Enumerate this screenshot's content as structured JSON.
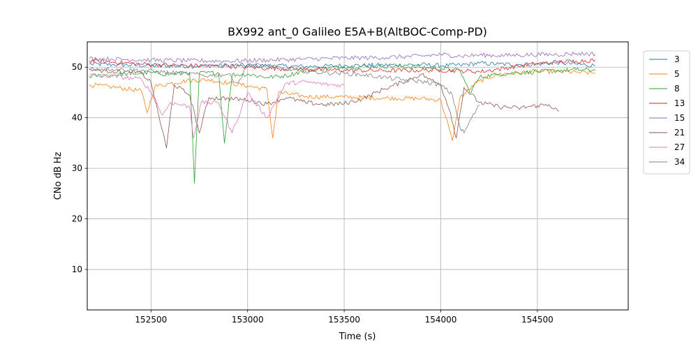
{
  "chart_data": {
    "type": "line",
    "title": "BX992 ant_0 Galileo E5A+B(AltBOC-Comp-PD)",
    "xlabel": "Time (s)",
    "ylabel": "CNo dB Hz",
    "xlim": [
      152170,
      154970
    ],
    "ylim": [
      2,
      55
    ],
    "xticks": [
      152500,
      153000,
      153500,
      154000,
      154500
    ],
    "yticks": [
      10,
      20,
      30,
      40,
      50
    ],
    "xtick_labels": [
      "152500",
      "153000",
      "153500",
      "154000",
      "154500"
    ],
    "ytick_labels": [
      "10",
      "20",
      "30",
      "40",
      "50"
    ],
    "grid": true,
    "legend_position": "outside-right",
    "series": [
      {
        "name": "3",
        "color": "#1f77b4",
        "values": [
          [
            152180,
            50.6
          ],
          [
            152300,
            50.5
          ],
          [
            152500,
            50.3
          ],
          [
            152700,
            50.2
          ],
          [
            152900,
            50.4
          ],
          [
            153100,
            50.3
          ],
          [
            153300,
            50.1
          ],
          [
            153500,
            50.3
          ],
          [
            153700,
            50.4
          ],
          [
            153900,
            50.5
          ],
          [
            154000,
            50.3
          ],
          [
            154100,
            50.4
          ],
          [
            154200,
            50.8
          ],
          [
            154300,
            50.6
          ],
          [
            154400,
            50.5
          ],
          [
            154500,
            50.6
          ],
          [
            154600,
            50.9
          ],
          [
            154700,
            50.6
          ],
          [
            154800,
            50.3
          ]
        ]
      },
      {
        "name": "5",
        "color": "#ff7f0e",
        "values": [
          [
            152180,
            46.5
          ],
          [
            152300,
            46.1
          ],
          [
            152450,
            45.3
          ],
          [
            152480,
            41.0
          ],
          [
            152520,
            46.2
          ],
          [
            152600,
            46.8
          ],
          [
            152700,
            47.4
          ],
          [
            152800,
            47.5
          ],
          [
            152900,
            46.9
          ],
          [
            153000,
            46.3
          ],
          [
            153100,
            45.6
          ],
          [
            153130,
            36.0
          ],
          [
            153160,
            45.0
          ],
          [
            153300,
            44.2
          ],
          [
            153500,
            44.1
          ],
          [
            153700,
            43.9
          ],
          [
            153900,
            43.8
          ],
          [
            154000,
            43.5
          ],
          [
            154060,
            35.5
          ],
          [
            154100,
            44.0
          ],
          [
            154200,
            47.3
          ],
          [
            154300,
            48.6
          ],
          [
            154400,
            48.9
          ],
          [
            154500,
            49.2
          ],
          [
            154600,
            49.1
          ],
          [
            154700,
            49.0
          ],
          [
            154800,
            48.8
          ]
        ]
      },
      {
        "name": "8",
        "color": "#2ca02c",
        "values": [
          [
            152180,
            48.2
          ],
          [
            152300,
            48.5
          ],
          [
            152500,
            48.9
          ],
          [
            152600,
            48.6
          ],
          [
            152700,
            49.0
          ],
          [
            152725,
            27.0
          ],
          [
            152750,
            48.8
          ],
          [
            152850,
            48.9
          ],
          [
            152880,
            35.0
          ],
          [
            152920,
            48.5
          ],
          [
            153000,
            48.6
          ],
          [
            153100,
            48.0
          ],
          [
            153200,
            48.3
          ],
          [
            153300,
            49.4
          ],
          [
            153500,
            50.1
          ],
          [
            153700,
            50.2
          ],
          [
            153900,
            50.0
          ],
          [
            154000,
            49.7
          ],
          [
            154100,
            49.3
          ],
          [
            154150,
            45.0
          ],
          [
            154200,
            48.0
          ],
          [
            154300,
            48.6
          ],
          [
            154400,
            48.9
          ],
          [
            154500,
            49.1
          ],
          [
            154600,
            49.3
          ],
          [
            154700,
            49.5
          ],
          [
            154800,
            49.4
          ]
        ]
      },
      {
        "name": "13",
        "color": "#d62728",
        "values": [
          [
            152180,
            51.3
          ],
          [
            152300,
            51.0
          ],
          [
            152450,
            50.6
          ],
          [
            152600,
            50.4
          ],
          [
            152700,
            50.3
          ],
          [
            152900,
            50.2
          ],
          [
            153000,
            50.0
          ],
          [
            153100,
            49.8
          ],
          [
            153300,
            49.6
          ],
          [
            153500,
            49.4
          ],
          [
            153700,
            49.3
          ],
          [
            153900,
            49.4
          ],
          [
            154000,
            49.4
          ],
          [
            154100,
            49.3
          ],
          [
            154200,
            49.1
          ],
          [
            154300,
            49.6
          ],
          [
            154400,
            50.2
          ],
          [
            154500,
            50.7
          ],
          [
            154600,
            51.0
          ],
          [
            154700,
            51.2
          ],
          [
            154800,
            51.4
          ]
        ]
      },
      {
        "name": "15",
        "color": "#9467bd",
        "values": [
          [
            152180,
            51.7
          ],
          [
            152300,
            51.6
          ],
          [
            152500,
            51.4
          ],
          [
            152700,
            51.3
          ],
          [
            152900,
            51.2
          ],
          [
            153100,
            51.4
          ],
          [
            153300,
            51.6
          ],
          [
            153500,
            51.8
          ],
          [
            153700,
            51.9
          ],
          [
            153900,
            52.2
          ],
          [
            154000,
            52.5
          ],
          [
            154100,
            52.2
          ],
          [
            154200,
            52.4
          ],
          [
            154300,
            52.3
          ],
          [
            154400,
            52.4
          ],
          [
            154500,
            52.5
          ],
          [
            154600,
            52.5
          ],
          [
            154700,
            52.7
          ],
          [
            154800,
            52.6
          ]
        ]
      },
      {
        "name": "21",
        "color": "#8c564b",
        "values": [
          [
            152180,
            49.5
          ],
          [
            152300,
            49.2
          ],
          [
            152450,
            48.8
          ],
          [
            152500,
            47.0
          ],
          [
            152580,
            34.0
          ],
          [
            152620,
            46.5
          ],
          [
            152700,
            44.5
          ],
          [
            152750,
            37.0
          ],
          [
            152800,
            44.0
          ],
          [
            152900,
            43.8
          ],
          [
            153000,
            43.5
          ],
          [
            153100,
            42.7
          ],
          [
            153200,
            44.0
          ],
          [
            153300,
            43.0
          ],
          [
            153400,
            42.6
          ],
          [
            153500,
            42.8
          ],
          [
            153600,
            43.8
          ],
          [
            153700,
            45.6
          ],
          [
            153800,
            47.0
          ],
          [
            153900,
            48.6
          ],
          [
            153950,
            47.4
          ],
          [
            154000,
            46.5
          ],
          [
            154050,
            41.0
          ],
          [
            154080,
            36.0
          ],
          [
            154120,
            46.0
          ],
          [
            154200,
            43.0
          ],
          [
            154300,
            42.2
          ],
          [
            154400,
            41.9
          ],
          [
            154500,
            42.4
          ],
          [
            154560,
            42.6
          ],
          [
            154610,
            41.2
          ]
        ]
      },
      {
        "name": "27",
        "color": "#e377c2",
        "values": [
          [
            152180,
            48.4
          ],
          [
            152300,
            48.2
          ],
          [
            152450,
            47.6
          ],
          [
            152500,
            45.0
          ],
          [
            152560,
            40.5
          ],
          [
            152600,
            43.0
          ],
          [
            152700,
            42.2
          ],
          [
            152720,
            36.0
          ],
          [
            152760,
            43.0
          ],
          [
            152850,
            42.9
          ],
          [
            152920,
            37.0
          ],
          [
            153000,
            45.0
          ],
          [
            153100,
            40.0
          ],
          [
            153200,
            46.8
          ],
          [
            153300,
            47.1
          ],
          [
            153400,
            46.6
          ],
          [
            153500,
            46.4
          ]
        ]
      },
      {
        "name": "34",
        "color": "#7f7f7f",
        "values": [
          [
            152180,
            49.7
          ],
          [
            152300,
            49.6
          ],
          [
            152450,
            49.4
          ],
          [
            152600,
            48.9
          ],
          [
            152700,
            48.7
          ],
          [
            152800,
            48.3
          ],
          [
            152900,
            48.6
          ],
          [
            152950,
            46.8
          ],
          [
            153000,
            50.5
          ],
          [
            153100,
            50.3
          ],
          [
            153200,
            49.6
          ],
          [
            153300,
            49.2
          ],
          [
            153400,
            48.9
          ],
          [
            153500,
            48.8
          ],
          [
            153600,
            48.5
          ],
          [
            153700,
            48.0
          ],
          [
            153800,
            47.5
          ],
          [
            153900,
            47.2
          ],
          [
            154000,
            46.5
          ],
          [
            154060,
            44.5
          ],
          [
            154100,
            38.0
          ],
          [
            154120,
            37.0
          ],
          [
            154160,
            40.0
          ],
          [
            154200,
            42.5
          ]
        ]
      }
    ]
  }
}
